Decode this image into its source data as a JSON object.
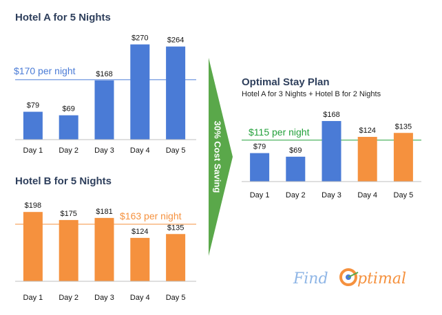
{
  "colors": {
    "blue": "#4a7bd6",
    "orange": "#f5913e",
    "green": "#5aa84a",
    "ref_green": "#22a03a",
    "title": "#2e3f5c"
  },
  "arrow_label": "30% Cost Saving",
  "logo": {
    "text_left": "Find",
    "text_right": "ptimal",
    "icon": "target-o-icon"
  },
  "chart_data": [
    {
      "id": "hotelA",
      "type": "bar",
      "title": "Hotel A for 5 Nights",
      "categories": [
        "Day 1",
        "Day 2",
        "Day 3",
        "Day 4",
        "Day 5"
      ],
      "values": [
        79,
        69,
        168,
        270,
        264
      ],
      "labels": [
        "$79",
        "$69",
        "$168",
        "$270",
        "$264"
      ],
      "colors": [
        "#4a7bd6",
        "#4a7bd6",
        "#4a7bd6",
        "#4a7bd6",
        "#4a7bd6"
      ],
      "ylim": [
        0,
        275
      ],
      "reference": {
        "value": 170,
        "label": "$170 per night",
        "color": "#4a7bd6"
      }
    },
    {
      "id": "hotelB",
      "type": "bar",
      "title": "Hotel B for 5 Nights",
      "categories": [
        "Day 1",
        "Day 2",
        "Day 3",
        "Day 4",
        "Day 5"
      ],
      "values": [
        198,
        175,
        181,
        124,
        135
      ],
      "labels": [
        "$198",
        "$175",
        "$181",
        "$124",
        "$135"
      ],
      "colors": [
        "#f5913e",
        "#f5913e",
        "#f5913e",
        "#f5913e",
        "#f5913e"
      ],
      "ylim": [
        0,
        220
      ],
      "reference": {
        "value": 163,
        "label": "$163 per night",
        "color": "#f5913e"
      }
    },
    {
      "id": "optimal",
      "type": "bar",
      "title": "Optimal Stay Plan",
      "subtitle": "Hotel A for 3 Nights + Hotel B for 2 Nights",
      "categories": [
        "Day 1",
        "Day 2",
        "Day 3",
        "Day 4",
        "Day 5"
      ],
      "values": [
        79,
        69,
        168,
        124,
        135
      ],
      "labels": [
        "$79",
        "$69",
        "$168",
        "$124",
        "$135"
      ],
      "colors": [
        "#4a7bd6",
        "#4a7bd6",
        "#4a7bd6",
        "#f5913e",
        "#f5913e"
      ],
      "ylim": [
        0,
        187
      ],
      "reference": {
        "value": 115,
        "label": "$115 per night",
        "color": "#22a03a"
      }
    }
  ]
}
